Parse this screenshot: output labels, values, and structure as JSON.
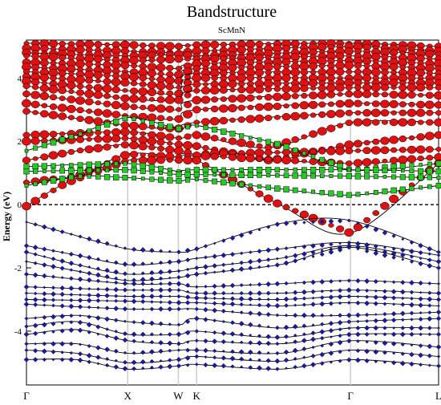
{
  "chart_data": {
    "type": "line",
    "title": "Bandstructure",
    "subtitle": "ScMnN",
    "xlabel": "",
    "ylabel": "Energy (eV)",
    "ylim": [
      -5.7,
      5.2
    ],
    "y_ticks": [
      "4",
      "2",
      "0",
      "-2",
      "-4"
    ],
    "y_tick_values": [
      4,
      2,
      0,
      -2,
      -4
    ],
    "k_points": [
      {
        "label": "Γ",
        "x": 0.0
      },
      {
        "label": "X",
        "x": 1.0
      },
      {
        "label": "W",
        "x": 1.5
      },
      {
        "label": "K",
        "x": 1.68
      },
      {
        "label": "Γ",
        "x": 3.2
      },
      {
        "label": "L",
        "x": 4.07
      }
    ],
    "fermi_level": 0,
    "grid": false,
    "colors": {
      "red": "#dd1111",
      "green": "#22cc22",
      "blue": "#1a1aa0",
      "line": "#000000"
    },
    "series": [
      {
        "color": "red",
        "values": [
          [
            [
              0.0,
              5.1
            ],
            [
              1.0,
              5.05
            ],
            [
              1.5,
              5.0
            ],
            [
              1.68,
              5.05
            ],
            [
              3.2,
              5.1
            ],
            [
              4.07,
              5.0
            ]
          ],
          [
            [
              0.0,
              4.95
            ],
            [
              1.0,
              4.85
            ],
            [
              1.5,
              4.8
            ],
            [
              1.68,
              4.85
            ],
            [
              3.2,
              5.0
            ],
            [
              4.07,
              4.85
            ]
          ],
          [
            [
              0.0,
              4.8
            ],
            [
              1.0,
              4.7
            ],
            [
              1.5,
              4.75
            ],
            [
              1.68,
              4.7
            ],
            [
              3.2,
              4.85
            ],
            [
              4.07,
              4.75
            ]
          ],
          [
            [
              0.0,
              4.7
            ],
            [
              1.0,
              4.55
            ],
            [
              1.5,
              4.6
            ],
            [
              1.68,
              4.6
            ],
            [
              3.2,
              4.7
            ],
            [
              4.07,
              4.6
            ]
          ],
          [
            [
              0.0,
              4.5
            ],
            [
              1.0,
              4.4
            ],
            [
              1.5,
              4.3
            ],
            [
              1.68,
              4.45
            ],
            [
              3.2,
              4.55
            ],
            [
              4.07,
              4.45
            ]
          ],
          [
            [
              0.0,
              4.35
            ],
            [
              1.0,
              4.2
            ],
            [
              1.5,
              4.1
            ],
            [
              1.68,
              4.3
            ],
            [
              3.2,
              4.4
            ],
            [
              4.07,
              4.3
            ]
          ],
          [
            [
              0.0,
              4.2
            ],
            [
              1.0,
              4.05
            ],
            [
              1.5,
              3.9
            ],
            [
              1.68,
              4.15
            ],
            [
              3.2,
              4.2
            ],
            [
              4.07,
              4.15
            ]
          ],
          [
            [
              0.0,
              4.05
            ],
            [
              1.0,
              3.85
            ],
            [
              1.5,
              3.7
            ],
            [
              1.68,
              4.0
            ],
            [
              3.2,
              4.0
            ],
            [
              4.07,
              4.0
            ]
          ],
          [
            [
              0.0,
              3.9
            ],
            [
              1.0,
              3.6
            ],
            [
              1.5,
              3.5
            ],
            [
              1.68,
              3.8
            ],
            [
              3.2,
              3.85
            ],
            [
              4.07,
              3.85
            ]
          ],
          [
            [
              0.0,
              3.75
            ],
            [
              1.0,
              3.35
            ],
            [
              1.5,
              3.3
            ],
            [
              1.68,
              3.6
            ],
            [
              3.2,
              3.7
            ],
            [
              4.07,
              3.7
            ]
          ],
          [
            [
              0.0,
              3.5
            ],
            [
              1.0,
              3.1
            ],
            [
              1.5,
              3.0
            ],
            [
              1.68,
              3.3
            ],
            [
              3.2,
              3.5
            ],
            [
              4.07,
              3.45
            ]
          ],
          [
            [
              0.0,
              3.2
            ],
            [
              1.0,
              2.8
            ],
            [
              1.5,
              2.7
            ],
            [
              1.68,
              3.0
            ],
            [
              3.2,
              3.2
            ],
            [
              4.07,
              3.15
            ]
          ],
          [
            [
              0.0,
              2.95
            ],
            [
              1.0,
              2.5
            ],
            [
              1.5,
              2.4
            ],
            [
              1.68,
              2.6
            ],
            [
              3.2,
              2.9
            ],
            [
              4.07,
              2.9
            ]
          ],
          [
            [
              0.0,
              2.2
            ],
            [
              1.0,
              2.3
            ],
            [
              1.5,
              2.1
            ],
            [
              1.68,
              2.2
            ],
            [
              2.4,
              1.8
            ],
            [
              3.2,
              2.6
            ],
            [
              4.07,
              2.6
            ]
          ],
          [
            [
              0.0,
              2.0
            ],
            [
              1.0,
              2.1
            ],
            [
              1.5,
              1.9
            ],
            [
              1.68,
              1.85
            ],
            [
              2.4,
              1.4
            ],
            [
              3.2,
              1.9
            ],
            [
              4.07,
              2.2
            ]
          ],
          [
            [
              0.0,
              1.4
            ],
            [
              0.5,
              1.7
            ],
            [
              1.0,
              1.9
            ],
            [
              1.5,
              1.7
            ],
            [
              1.68,
              1.6
            ],
            [
              3.2,
              1.7
            ],
            [
              4.07,
              1.75
            ]
          ],
          [
            [
              0.0,
              0.7
            ],
            [
              0.5,
              0.9
            ],
            [
              1.0,
              1.6
            ],
            [
              1.5,
              1.5
            ],
            [
              1.68,
              1.55
            ],
            [
              3.2,
              1.3
            ],
            [
              4.07,
              1.5
            ]
          ],
          [
            [
              0.0,
              -0.05
            ],
            [
              0.4,
              0.7
            ],
            [
              1.0,
              1.4
            ],
            [
              1.5,
              1.4
            ],
            [
              1.68,
              1.4
            ],
            [
              2.5,
              0.0
            ],
            [
              3.2,
              -0.9
            ],
            [
              4.07,
              1.3
            ]
          ]
        ]
      },
      {
        "color": "green",
        "values": [
          [
            [
              0.0,
              1.7
            ],
            [
              0.5,
              2.2
            ],
            [
              1.0,
              2.75
            ],
            [
              1.5,
              2.4
            ],
            [
              1.68,
              2.5
            ],
            [
              2.5,
              1.9
            ],
            [
              3.2,
              1.1
            ],
            [
              4.07,
              1.3
            ]
          ],
          [
            [
              0.0,
              1.2
            ],
            [
              1.0,
              1.3
            ],
            [
              1.5,
              1.05
            ],
            [
              1.68,
              1.1
            ],
            [
              3.2,
              1.1
            ],
            [
              4.07,
              1.05
            ]
          ],
          [
            [
              0.0,
              1.05
            ],
            [
              1.0,
              1.1
            ],
            [
              1.5,
              0.95
            ],
            [
              1.68,
              0.95
            ],
            [
              3.2,
              0.9
            ],
            [
              4.07,
              0.85
            ]
          ],
          [
            [
              0.0,
              0.6
            ],
            [
              0.5,
              0.9
            ],
            [
              1.0,
              0.85
            ],
            [
              1.5,
              0.75
            ],
            [
              1.68,
              0.8
            ],
            [
              2.5,
              0.5
            ],
            [
              3.2,
              0.3
            ],
            [
              4.07,
              0.6
            ]
          ]
        ]
      },
      {
        "color": "blue",
        "values": [
          [
            [
              0.0,
              -0.55
            ],
            [
              0.4,
              -0.9
            ],
            [
              1.0,
              -1.4
            ],
            [
              1.5,
              -1.5
            ],
            [
              1.68,
              -1.4
            ],
            [
              2.5,
              -0.6
            ],
            [
              3.2,
              -0.5
            ],
            [
              4.07,
              -1.5
            ]
          ],
          [
            [
              0.0,
              -1.3
            ],
            [
              0.5,
              -1.6
            ],
            [
              1.0,
              -1.9
            ],
            [
              1.5,
              -1.8
            ],
            [
              1.68,
              -1.7
            ],
            [
              2.5,
              -1.4
            ],
            [
              3.2,
              -1.2
            ],
            [
              4.07,
              -1.6
            ]
          ],
          [
            [
              0.0,
              -1.5
            ],
            [
              0.5,
              -1.9
            ],
            [
              1.0,
              -2.2
            ],
            [
              1.5,
              -2.1
            ],
            [
              1.68,
              -2.0
            ],
            [
              2.5,
              -1.7
            ],
            [
              3.2,
              -1.3
            ],
            [
              4.07,
              -1.8
            ]
          ],
          [
            [
              0.0,
              -1.8
            ],
            [
              0.5,
              -2.1
            ],
            [
              1.0,
              -2.4
            ],
            [
              1.5,
              -2.3
            ],
            [
              1.68,
              -2.2
            ],
            [
              2.5,
              -1.9
            ],
            [
              3.2,
              -1.35
            ],
            [
              4.07,
              -2.0
            ]
          ],
          [
            [
              0.0,
              -2.2
            ],
            [
              1.0,
              -2.5
            ],
            [
              1.5,
              -2.5
            ],
            [
              1.68,
              -2.6
            ],
            [
              2.5,
              -2.5
            ],
            [
              3.2,
              -2.4
            ],
            [
              4.07,
              -2.5
            ]
          ],
          [
            [
              0.0,
              -2.6
            ],
            [
              1.0,
              -2.7
            ],
            [
              1.5,
              -2.7
            ],
            [
              1.68,
              -2.8
            ],
            [
              2.5,
              -2.8
            ],
            [
              3.2,
              -2.7
            ],
            [
              4.07,
              -2.8
            ]
          ],
          [
            [
              0.0,
              -2.8
            ],
            [
              1.0,
              -2.9
            ],
            [
              1.5,
              -2.9
            ],
            [
              1.68,
              -2.95
            ],
            [
              2.5,
              -3.0
            ],
            [
              3.2,
              -2.9
            ],
            [
              4.07,
              -3.0
            ]
          ],
          [
            [
              0.0,
              -3.0
            ],
            [
              1.0,
              -3.05
            ],
            [
              1.5,
              -3.1
            ],
            [
              1.68,
              -3.1
            ],
            [
              2.5,
              -3.2
            ],
            [
              3.2,
              -3.1
            ],
            [
              4.07,
              -3.2
            ]
          ],
          [
            [
              0.0,
              -3.15
            ],
            [
              1.0,
              -3.3
            ],
            [
              1.5,
              -3.3
            ],
            [
              1.68,
              -3.3
            ],
            [
              2.5,
              -3.5
            ],
            [
              3.2,
              -3.5
            ],
            [
              4.07,
              -3.4
            ]
          ],
          [
            [
              0.0,
              -3.6
            ],
            [
              0.5,
              -3.5
            ],
            [
              1.0,
              -3.7
            ],
            [
              1.5,
              -3.8
            ],
            [
              1.68,
              -3.6
            ],
            [
              2.5,
              -3.9
            ],
            [
              3.2,
              -3.7
            ],
            [
              4.07,
              -3.6
            ]
          ],
          [
            [
              0.0,
              -3.85
            ],
            [
              0.5,
              -3.7
            ],
            [
              1.0,
              -4.1
            ],
            [
              1.5,
              -4.1
            ],
            [
              1.68,
              -4.0
            ],
            [
              2.5,
              -4.2
            ],
            [
              3.2,
              -3.9
            ],
            [
              4.07,
              -3.9
            ]
          ],
          [
            [
              0.0,
              -4.1
            ],
            [
              0.5,
              -3.95
            ],
            [
              1.0,
              -4.3
            ],
            [
              1.5,
              -4.4
            ],
            [
              1.68,
              -4.3
            ],
            [
              2.5,
              -4.4
            ],
            [
              3.2,
              -4.1
            ],
            [
              4.07,
              -4.1
            ]
          ],
          [
            [
              0.0,
              -4.4
            ],
            [
              0.5,
              -4.4
            ],
            [
              1.0,
              -4.7
            ],
            [
              1.5,
              -4.6
            ],
            [
              1.68,
              -4.6
            ],
            [
              2.5,
              -4.7
            ],
            [
              3.2,
              -4.3
            ],
            [
              4.07,
              -4.5
            ]
          ],
          [
            [
              0.0,
              -4.6
            ],
            [
              0.5,
              -4.7
            ],
            [
              1.0,
              -5.0
            ],
            [
              1.5,
              -4.9
            ],
            [
              1.68,
              -4.8
            ],
            [
              2.5,
              -4.95
            ],
            [
              3.2,
              -4.6
            ],
            [
              4.07,
              -4.8
            ]
          ],
          [
            [
              0.0,
              -4.9
            ],
            [
              0.5,
              -4.9
            ],
            [
              1.0,
              -5.2
            ],
            [
              1.5,
              -5.1
            ],
            [
              1.68,
              -5.05
            ],
            [
              2.5,
              -5.2
            ],
            [
              3.2,
              -4.9
            ],
            [
              4.07,
              -5.1
            ]
          ]
        ]
      }
    ]
  }
}
